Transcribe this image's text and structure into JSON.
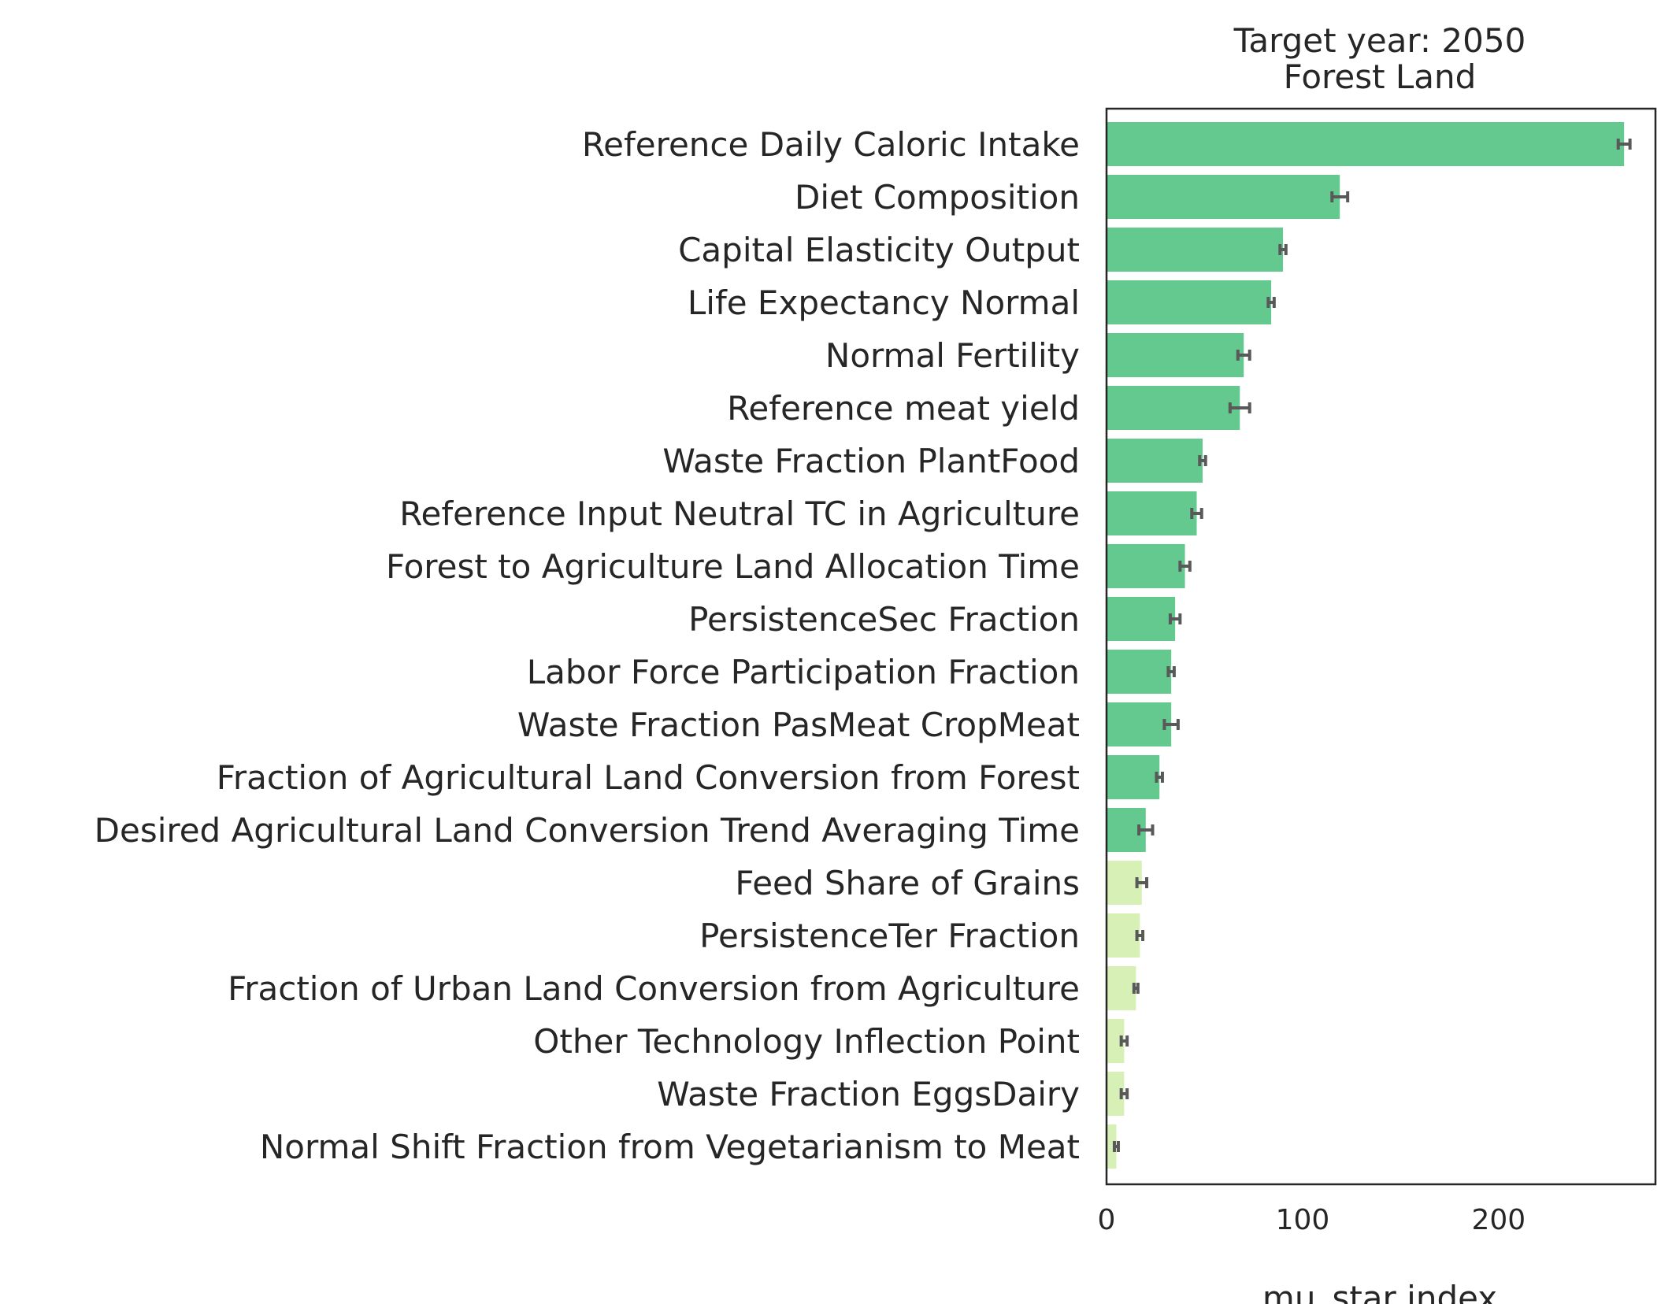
{
  "chart_data": {
    "type": "bar",
    "orientation": "horizontal",
    "title": "Target year: 2050",
    "subtitle": "Forest Land",
    "xlabel": "mu_star index",
    "ylabel": "",
    "xlim": [
      0,
      280
    ],
    "xticks": [
      0,
      100,
      200
    ],
    "grid": false,
    "colors": {
      "high": "#63c98f",
      "low": "#d6f0b5",
      "error": "#595959",
      "frame": "#262626"
    },
    "categories": [
      "Reference Daily Caloric Intake",
      "Diet Composition",
      "Capital Elasticity Output",
      "Life Expectancy Normal",
      "Normal Fertility",
      "Reference meat yield",
      "Waste Fraction PlantFood",
      "Reference Input Neutral TC in Agriculture",
      "Forest to Agriculture Land Allocation Time",
      "PersistenceSec Fraction",
      "Labor Force Participation Fraction",
      "Waste Fraction PasMeat CropMeat",
      "Fraction of Agricultural Land Conversion from Forest",
      "Desired Agricultural Land Conversion Trend Averaging Time",
      "Feed Share of Grains",
      "PersistenceTer Fraction",
      "Fraction of Urban Land Conversion from Agriculture",
      "Other Technology Inflection Point",
      "Waste Fraction EggsDairy",
      "Normal Shift Fraction from Vegetarianism to Meat"
    ],
    "values": [
      264,
      119,
      90,
      84,
      70,
      68,
      49,
      46,
      40,
      35,
      33,
      33,
      27,
      20,
      18,
      17,
      15,
      9,
      9,
      5
    ],
    "errors": [
      3,
      4,
      1.5,
      1.5,
      3,
      5,
      1.5,
      2.5,
      2.5,
      2.5,
      1.5,
      3.5,
      1.5,
      3.5,
      2.5,
      1.5,
      1,
      1.5,
      1.5,
      1
    ],
    "groups": [
      "high",
      "high",
      "high",
      "high",
      "high",
      "high",
      "high",
      "high",
      "high",
      "high",
      "high",
      "high",
      "high",
      "high",
      "low",
      "low",
      "low",
      "low",
      "low",
      "low"
    ]
  }
}
